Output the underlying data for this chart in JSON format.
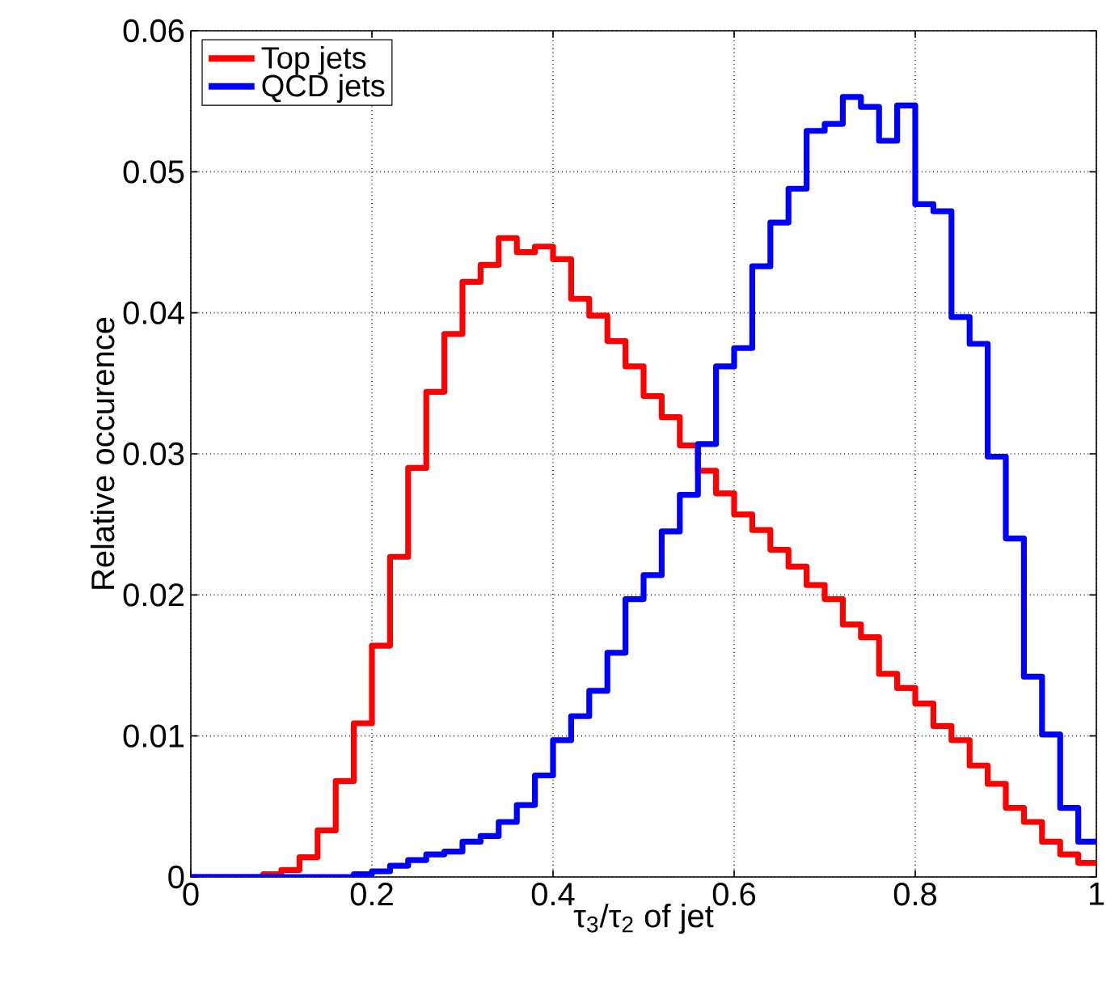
{
  "chart_data": {
    "type": "histogram",
    "xlabel": "τ$_{3}$/τ$_{2}$ of jet",
    "ylabel": "Relative occurence",
    "bins": [
      0,
      0.02,
      0.04,
      0.06,
      0.08,
      0.1,
      0.12,
      0.14,
      0.16,
      0.18,
      0.2,
      0.22,
      0.24,
      0.26,
      0.28,
      0.3,
      0.32,
      0.34,
      0.36,
      0.38,
      0.4,
      0.42,
      0.44,
      0.46,
      0.48,
      0.5,
      0.52,
      0.54,
      0.56,
      0.58,
      0.6,
      0.62,
      0.64,
      0.66,
      0.68,
      0.7,
      0.72,
      0.74,
      0.76,
      0.78,
      0.8,
      0.82,
      0.84,
      0.86,
      0.88,
      0.9,
      0.92,
      0.94,
      0.96,
      0.98,
      1
    ],
    "series": [
      {
        "name": "Top jets",
        "color": "#ff0000",
        "values": [
          0,
          0,
          0,
          0,
          0.0002,
          0.0005,
          0.0014,
          0.0033,
          0.0068,
          0.0109,
          0.0164,
          0.0227,
          0.029,
          0.0344,
          0.0385,
          0.0422,
          0.0434,
          0.0453,
          0.0443,
          0.0447,
          0.0438,
          0.041,
          0.0398,
          0.038,
          0.0362,
          0.0341,
          0.0326,
          0.0306,
          0.0288,
          0.0272,
          0.0257,
          0.0246,
          0.0232,
          0.022,
          0.0207,
          0.0197,
          0.0179,
          0.017,
          0.0144,
          0.0134,
          0.0123,
          0.0107,
          0.0097,
          0.0079,
          0.0066,
          0.0049,
          0.0039,
          0.0025,
          0.0016,
          0.001
        ]
      },
      {
        "name": "QCD jets",
        "color": "#0000ff",
        "values": [
          0,
          0,
          0,
          0,
          0,
          0,
          0,
          0,
          0,
          0.0002,
          0.0004,
          0.0008,
          0.0012,
          0.0016,
          0.0018,
          0.0025,
          0.0029,
          0.0039,
          0.0051,
          0.0072,
          0.0097,
          0.0114,
          0.0132,
          0.0159,
          0.0197,
          0.0214,
          0.0245,
          0.0271,
          0.0307,
          0.0362,
          0.0375,
          0.0433,
          0.0464,
          0.0488,
          0.0529,
          0.0534,
          0.0553,
          0.0546,
          0.0522,
          0.0547,
          0.0477,
          0.0472,
          0.0397,
          0.0378,
          0.0298,
          0.024,
          0.0142,
          0.0101,
          0.0049,
          0.0025
        ]
      }
    ],
    "xlim": [
      0,
      1
    ],
    "ylim": [
      0,
      0.06
    ],
    "xticks": [
      0,
      0.2,
      0.4,
      0.6,
      0.8,
      1
    ],
    "yticks": [
      0,
      0.01,
      0.02,
      0.03,
      0.04,
      0.05,
      0.06
    ],
    "grid": true,
    "legend": "top left"
  }
}
